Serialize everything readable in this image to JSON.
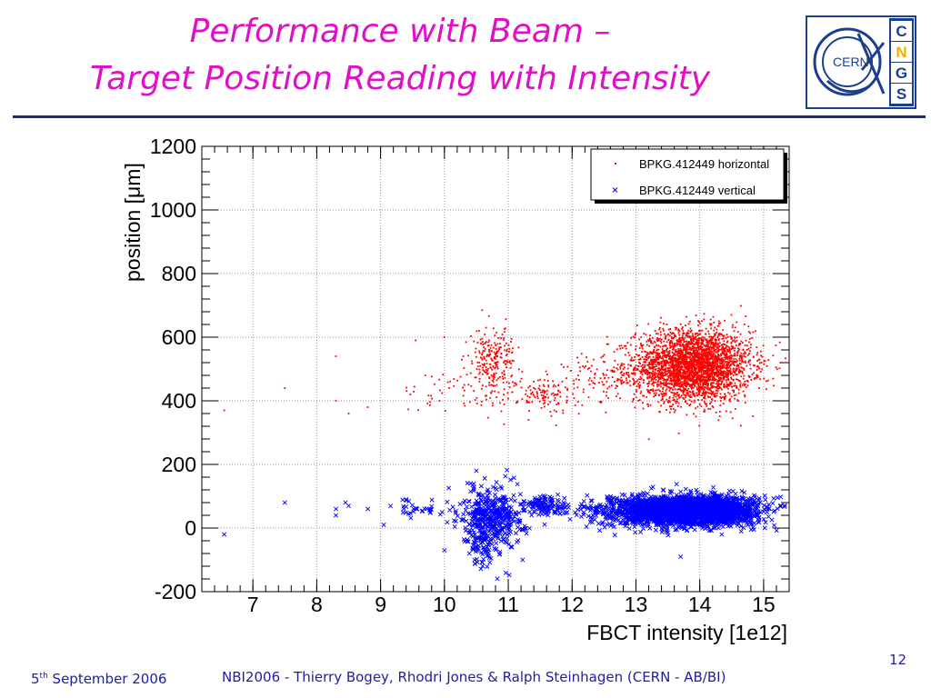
{
  "slide": {
    "title_line1": "Performance with Beam –",
    "title_line2": "Target Position Reading with Intensity",
    "footer_date_day": "5",
    "footer_date_sup": "th",
    "footer_date_rest": " September 2006",
    "footer_credit": "NBI2006 - Thierry Bogey, Rhodri Jones & Ralph Steinhagen (CERN - AB/BI)",
    "page_number": "12",
    "title_color": "#e010c8",
    "rule_color": "#1a2a8a",
    "footer_color": "#2020a0"
  },
  "logo": {
    "ring_text": "CERN",
    "letters": [
      "C",
      "N",
      "G",
      "S"
    ],
    "letter_colors": [
      "#1b3f8f",
      "#f0b000",
      "#1b3f8f",
      "#1b3f8f"
    ]
  },
  "chart_data": {
    "type": "scatter",
    "xlabel": "FBCT intensity [1e12]",
    "ylabel": "position [μm]",
    "xlim": [
      6.2,
      15.4
    ],
    "ylim": [
      -200,
      1200
    ],
    "x_ticks": [
      7,
      8,
      9,
      10,
      11,
      12,
      13,
      14,
      15
    ],
    "y_ticks": [
      -200,
      0,
      200,
      400,
      600,
      800,
      1000,
      1200
    ],
    "grid": true,
    "legend_position": "top-right",
    "series": [
      {
        "name": "BPKG.412449 horizontal",
        "marker": "dot",
        "color": "#ff0000",
        "clusters": [
          {
            "x_center": 13.9,
            "y_center": 510,
            "x_spread": 0.45,
            "y_spread": 55,
            "count": 3200
          },
          {
            "x_center": 10.75,
            "y_center": 520,
            "x_spread": 0.18,
            "y_spread": 55,
            "count": 260
          },
          {
            "x_center": 11.6,
            "y_center": 420,
            "x_spread": 0.22,
            "y_spread": 30,
            "count": 120
          },
          {
            "x_center": 12.6,
            "y_center": 470,
            "x_spread": 0.35,
            "y_spread": 40,
            "count": 120
          },
          {
            "x_center": 10.1,
            "y_center": 420,
            "x_spread": 0.4,
            "y_spread": 30,
            "count": 40
          }
        ],
        "outliers": [
          [
            6.55,
            370
          ],
          [
            7.5,
            440
          ],
          [
            8.3,
            540
          ],
          [
            8.5,
            360
          ],
          [
            8.3,
            400
          ],
          [
            8.8,
            380
          ],
          [
            9.7,
            480
          ],
          [
            9.55,
            590
          ],
          [
            10.0,
            600
          ],
          [
            14.7,
            640
          ],
          [
            12.1,
            520
          ]
        ]
      },
      {
        "name": "BPKG.412449 vertical",
        "marker": "x",
        "color": "#0000ff",
        "clusters": [
          {
            "x_center": 13.85,
            "y_center": 55,
            "x_spread": 0.5,
            "y_spread": 22,
            "count": 3200
          },
          {
            "x_center": 10.75,
            "y_center": 40,
            "x_spread": 0.25,
            "y_spread": 45,
            "count": 420
          },
          {
            "x_center": 10.65,
            "y_center": -60,
            "x_spread": 0.15,
            "y_spread": 35,
            "count": 80
          },
          {
            "x_center": 11.6,
            "y_center": 70,
            "x_spread": 0.2,
            "y_spread": 15,
            "count": 120
          },
          {
            "x_center": 12.7,
            "y_center": 50,
            "x_spread": 0.35,
            "y_spread": 25,
            "count": 160
          },
          {
            "x_center": 9.6,
            "y_center": 60,
            "x_spread": 0.2,
            "y_spread": 15,
            "count": 30
          }
        ],
        "outliers": [
          [
            6.55,
            -20
          ],
          [
            7.5,
            80
          ],
          [
            8.3,
            60
          ],
          [
            8.3,
            40
          ],
          [
            8.45,
            80
          ],
          [
            8.5,
            70
          ],
          [
            8.8,
            60
          ],
          [
            9.05,
            10
          ],
          [
            9.4,
            90
          ],
          [
            10.0,
            -70
          ],
          [
            10.5,
            180
          ],
          [
            13.7,
            -90
          ]
        ]
      }
    ]
  }
}
